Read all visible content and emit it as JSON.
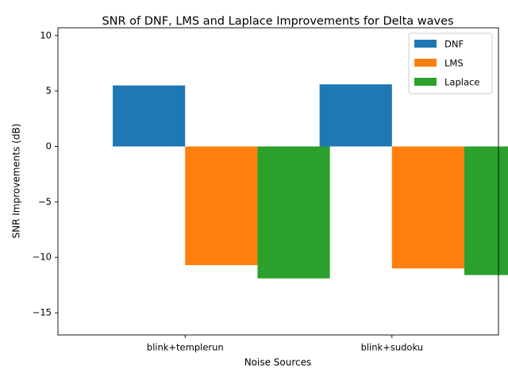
{
  "chart_data": {
    "type": "bar",
    "title": "SNR of DNF, LMS and Laplace Improvements for Delta waves",
    "xlabel": "Noise Sources",
    "ylabel": "SNR Improvements (dB)",
    "ylim": [
      -17,
      10.7
    ],
    "yticks": [
      -15,
      -10,
      -5,
      0,
      5,
      10
    ],
    "ytick_labels": [
      "−15",
      "−10",
      "−5",
      "0",
      "5",
      "10"
    ],
    "categories": [
      "blink+templerun",
      "blink+sudoku"
    ],
    "series": [
      {
        "name": "DNF",
        "color": "#1f77b4",
        "values": [
          5.5,
          5.6
        ]
      },
      {
        "name": "LMS",
        "color": "#ff7f0e",
        "values": [
          -10.7,
          -11.0
        ]
      },
      {
        "name": "Laplace",
        "color": "#2ca02c",
        "values": [
          -11.9,
          -11.6
        ]
      }
    ],
    "legend_position": "top-right",
    "grid": false
  }
}
